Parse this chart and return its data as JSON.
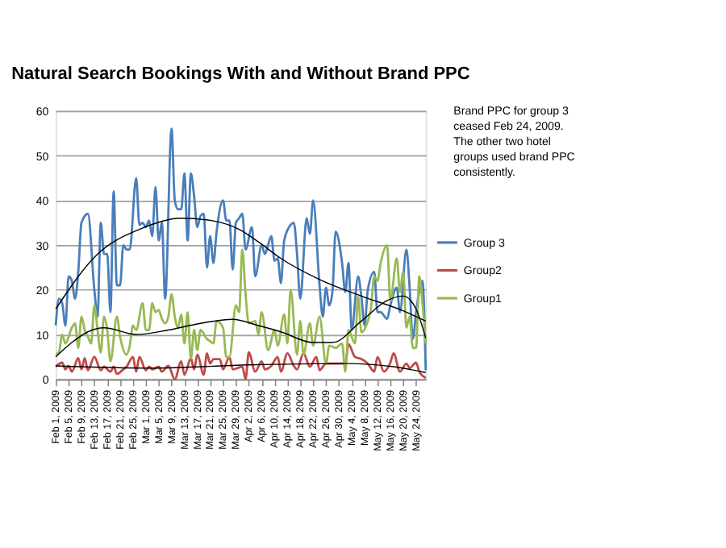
{
  "chart_data": {
    "type": "line",
    "title": "Natural Search Bookings With and Without Brand PPC",
    "annotations": [
      "Brand PPC  for group 3 ceased Feb 24, 2009.  The other two hotel groups used brand PPC consistently."
    ],
    "ylim": [
      0,
      60
    ],
    "yticks": [
      0,
      10,
      20,
      30,
      40,
      50,
      60
    ],
    "grid": "y",
    "legend": "right",
    "xlim": [
      "2009-02-01",
      "2009-05-27"
    ],
    "xticks": [
      {
        "value": "2009-02-01",
        "label": "Feb 1, 2009"
      },
      {
        "value": "2009-02-05",
        "label": "Feb 5, 2009"
      },
      {
        "value": "2009-02-09",
        "label": "Feb 9, 2009"
      },
      {
        "value": "2009-02-13",
        "label": "Feb 13, 2009"
      },
      {
        "value": "2009-02-17",
        "label": "Feb 17, 2009"
      },
      {
        "value": "2009-02-21",
        "label": "Feb 21, 2009"
      },
      {
        "value": "2009-02-25",
        "label": "Feb 25, 2009"
      },
      {
        "value": "2009-03-01",
        "label": "Mar 1, 2009"
      },
      {
        "value": "2009-03-05",
        "label": "Mar 5, 2009"
      },
      {
        "value": "2009-03-09",
        "label": "Mar 9, 2009"
      },
      {
        "value": "2009-03-13",
        "label": "Mar 13, 2009"
      },
      {
        "value": "2009-03-17",
        "label": "Mar 17, 2009"
      },
      {
        "value": "2009-03-21",
        "label": "Mar 21, 2009"
      },
      {
        "value": "2009-03-25",
        "label": "Mar 25, 2009"
      },
      {
        "value": "2009-03-29",
        "label": "Mar 29, 2009"
      },
      {
        "value": "2009-04-02",
        "label": "Apr 2, 2009"
      },
      {
        "value": "2009-04-06",
        "label": "Apr 6, 2009"
      },
      {
        "value": "2009-04-10",
        "label": "Apr 10, 2009"
      },
      {
        "value": "2009-04-14",
        "label": "Apr 14, 2009"
      },
      {
        "value": "2009-04-18",
        "label": "Apr 18, 2009"
      },
      {
        "value": "2009-04-22",
        "label": "Apr 22, 2009"
      },
      {
        "value": "2009-04-26",
        "label": "Apr 26, 2009"
      },
      {
        "value": "2009-04-30",
        "label": "Apr 30, 2009"
      },
      {
        "value": "2009-05-04",
        "label": "May 4, 2009"
      },
      {
        "value": "2009-05-08",
        "label": "May 8, 2009"
      },
      {
        "value": "2009-05-12",
        "label": "May 12, 2009"
      },
      {
        "value": "2009-05-16",
        "label": "May 16, 2009"
      },
      {
        "value": "2009-05-20",
        "label": "May 20, 2009"
      },
      {
        "value": "2009-05-24",
        "label": "May 24, 2009"
      }
    ],
    "series": [
      {
        "name": "Group 3",
        "color": "#4a7ebb",
        "x": [
          "2009-02-01",
          "2009-02-02",
          "2009-02-03",
          "2009-02-04",
          "2009-02-05",
          "2009-02-06",
          "2009-02-07",
          "2009-02-08",
          "2009-02-09",
          "2009-02-11",
          "2009-02-13",
          "2009-02-14",
          "2009-02-15",
          "2009-02-16",
          "2009-02-17",
          "2009-02-18",
          "2009-02-19",
          "2009-02-20",
          "2009-02-21",
          "2009-02-22",
          "2009-02-23",
          "2009-02-24",
          "2009-02-26",
          "2009-02-27",
          "2009-02-28",
          "2009-03-01",
          "2009-03-02",
          "2009-03-03",
          "2009-03-04",
          "2009-03-05",
          "2009-03-06",
          "2009-03-07",
          "2009-03-09",
          "2009-03-10",
          "2009-03-11",
          "2009-03-12",
          "2009-03-13",
          "2009-03-14",
          "2009-03-15",
          "2009-03-16",
          "2009-03-17",
          "2009-03-18",
          "2009-03-19",
          "2009-03-20",
          "2009-03-21",
          "2009-03-22",
          "2009-03-23",
          "2009-03-25",
          "2009-03-26",
          "2009-03-27",
          "2009-03-28",
          "2009-03-29",
          "2009-03-30",
          "2009-03-31",
          "2009-04-01",
          "2009-04-03",
          "2009-04-04",
          "2009-04-06",
          "2009-04-07",
          "2009-04-08",
          "2009-04-09",
          "2009-04-10",
          "2009-04-11",
          "2009-04-12",
          "2009-04-13",
          "2009-04-15",
          "2009-04-16",
          "2009-04-17",
          "2009-04-18",
          "2009-04-20",
          "2009-04-21",
          "2009-04-22",
          "2009-04-24",
          "2009-04-25",
          "2009-04-26",
          "2009-04-27",
          "2009-04-28",
          "2009-04-29",
          "2009-05-01",
          "2009-05-02",
          "2009-05-03",
          "2009-05-04",
          "2009-05-06",
          "2009-05-07",
          "2009-05-08",
          "2009-05-09",
          "2009-05-11",
          "2009-05-12",
          "2009-05-13",
          "2009-05-15",
          "2009-05-16",
          "2009-05-18",
          "2009-05-19",
          "2009-05-21",
          "2009-05-22",
          "2009-05-23",
          "2009-05-24",
          "2009-05-26",
          "2009-05-27"
        ],
        "values": [
          12,
          18,
          17,
          12,
          23,
          22,
          18,
          24,
          35,
          37,
          20,
          14,
          35,
          28,
          28,
          15,
          42,
          21,
          21,
          30,
          29,
          29,
          45,
          34.5,
          35,
          34,
          35.5,
          32,
          43,
          31,
          35,
          18,
          56,
          40,
          38,
          38,
          46,
          31,
          46,
          41,
          34,
          36.5,
          37,
          25,
          32,
          26,
          33,
          40,
          35.5,
          35.5,
          24.5,
          35,
          36,
          37,
          29,
          34,
          23,
          30,
          28,
          30,
          32,
          26.5,
          27,
          21.5,
          31,
          34.5,
          35,
          28,
          18,
          36,
          32.5,
          40,
          21,
          14,
          20.5,
          16.5,
          19.5,
          33,
          26,
          19.5,
          26,
          11,
          23,
          18.5,
          12,
          20,
          24,
          15,
          15,
          13.5,
          16.5,
          20.5,
          15,
          29,
          20.5,
          9,
          15,
          22,
          2
        ]
      },
      {
        "name": "Group2",
        "color": "#be4b48",
        "x": [
          "2009-02-01",
          "2009-02-03",
          "2009-02-04",
          "2009-02-05",
          "2009-02-06",
          "2009-02-08",
          "2009-02-09",
          "2009-02-10",
          "2009-02-11",
          "2009-02-13",
          "2009-02-15",
          "2009-02-16",
          "2009-02-18",
          "2009-02-19",
          "2009-02-20",
          "2009-02-22",
          "2009-02-23",
          "2009-02-25",
          "2009-02-26",
          "2009-02-27",
          "2009-03-01",
          "2009-03-02",
          "2009-03-03",
          "2009-03-05",
          "2009-03-06",
          "2009-03-08",
          "2009-03-10",
          "2009-03-12",
          "2009-03-13",
          "2009-03-15",
          "2009-03-16",
          "2009-03-17",
          "2009-03-19",
          "2009-03-20",
          "2009-03-21",
          "2009-03-22",
          "2009-03-24",
          "2009-03-25",
          "2009-03-27",
          "2009-03-28",
          "2009-03-31",
          "2009-04-01",
          "2009-04-02",
          "2009-04-04",
          "2009-04-06",
          "2009-04-07",
          "2009-04-09",
          "2009-04-11",
          "2009-04-12",
          "2009-04-14",
          "2009-04-16",
          "2009-04-17",
          "2009-04-19",
          "2009-04-21",
          "2009-04-23",
          "2009-04-24",
          "2009-04-26",
          "2009-04-28",
          "2009-05-01",
          "2009-05-02",
          "2009-05-03",
          "2009-05-05",
          "2009-05-07",
          "2009-05-09",
          "2009-05-11",
          "2009-05-12",
          "2009-05-14",
          "2009-05-16",
          "2009-05-17",
          "2009-05-19",
          "2009-05-21",
          "2009-05-22",
          "2009-05-24",
          "2009-05-25",
          "2009-05-27"
        ],
        "values": [
          2.8,
          3.7,
          2.2,
          3,
          1.7,
          4.7,
          2.2,
          4.7,
          2,
          5,
          2,
          2.8,
          1.7,
          2.8,
          1.2,
          2.2,
          2.8,
          5,
          1.7,
          5,
          2,
          2.8,
          2.2,
          2.8,
          1.7,
          3,
          0,
          4,
          1,
          4.7,
          2.2,
          5.5,
          1,
          5.8,
          3.5,
          4.5,
          4.5,
          2.2,
          5,
          2.2,
          2.8,
          0,
          6,
          1.7,
          4,
          2.2,
          3,
          5,
          1.7,
          5.8,
          3,
          2.2,
          5.8,
          2.8,
          5,
          2,
          3.5,
          3.5,
          3.5,
          3.5,
          7.8,
          5,
          4.5,
          3.5,
          1.7,
          5,
          1.7,
          3.7,
          5.8,
          1.7,
          3.5,
          2.5,
          3.7,
          1.7,
          0.3
        ]
      },
      {
        "name": "Group1",
        "color": "#98b954",
        "x": [
          "2009-02-01",
          "2009-02-02",
          "2009-02-03",
          "2009-02-04",
          "2009-02-06",
          "2009-02-07",
          "2009-02-08",
          "2009-02-09",
          "2009-02-10",
          "2009-02-11",
          "2009-02-12",
          "2009-02-13",
          "2009-02-14",
          "2009-02-15",
          "2009-02-16",
          "2009-02-17",
          "2009-02-18",
          "2009-02-20",
          "2009-02-21",
          "2009-02-23",
          "2009-02-24",
          "2009-02-25",
          "2009-02-26",
          "2009-02-28",
          "2009-03-01",
          "2009-03-02",
          "2009-03-03",
          "2009-03-04",
          "2009-03-05",
          "2009-03-06",
          "2009-03-07",
          "2009-03-08",
          "2009-03-09",
          "2009-03-10",
          "2009-03-11",
          "2009-03-12",
          "2009-03-13",
          "2009-03-14",
          "2009-03-15",
          "2009-03-16",
          "2009-03-17",
          "2009-03-18",
          "2009-03-20",
          "2009-03-21",
          "2009-03-22",
          "2009-03-23",
          "2009-03-25",
          "2009-03-26",
          "2009-03-27",
          "2009-03-29",
          "2009-03-30",
          "2009-03-31",
          "2009-04-01",
          "2009-04-02",
          "2009-04-04",
          "2009-04-05",
          "2009-04-06",
          "2009-04-08",
          "2009-04-10",
          "2009-04-11",
          "2009-04-13",
          "2009-04-14",
          "2009-04-15",
          "2009-04-17",
          "2009-04-18",
          "2009-04-19",
          "2009-04-21",
          "2009-04-22",
          "2009-04-24",
          "2009-04-26",
          "2009-04-27",
          "2009-04-29",
          "2009-05-01",
          "2009-05-02",
          "2009-05-03",
          "2009-05-05",
          "2009-05-06",
          "2009-05-07",
          "2009-05-09",
          "2009-05-10",
          "2009-05-11",
          "2009-05-12",
          "2009-05-13",
          "2009-05-15",
          "2009-05-16",
          "2009-05-18",
          "2009-05-19",
          "2009-05-20",
          "2009-05-21",
          "2009-05-22",
          "2009-05-23",
          "2009-05-24",
          "2009-05-25",
          "2009-05-26",
          "2009-05-27"
        ],
        "values": [
          5.6,
          6,
          10,
          8,
          11.5,
          12.5,
          7,
          14,
          11,
          9.5,
          8,
          16.5,
          11,
          6,
          14,
          11,
          4,
          14,
          9.5,
          5.5,
          7.5,
          12,
          11,
          17,
          11,
          11,
          17,
          15,
          15.5,
          13.5,
          12.5,
          14,
          19,
          14,
          11.5,
          14.5,
          8,
          15,
          4.5,
          11,
          6.5,
          11,
          9,
          8.5,
          8,
          13,
          11.5,
          5,
          5,
          16.5,
          15,
          29,
          19,
          12.5,
          13,
          10,
          15,
          6.5,
          11,
          7.5,
          14.5,
          8,
          20,
          5.5,
          13,
          5.5,
          12.5,
          7.5,
          14,
          3.5,
          7.5,
          7,
          8,
          1.7,
          11,
          8,
          18.5,
          10.5,
          13,
          16,
          23,
          22,
          26,
          30,
          17.5,
          27,
          19.5,
          24,
          11.5,
          14,
          7,
          7,
          23,
          17,
          8
        ]
      },
      {
        "color": "#000000",
        "x": [
          "2009-02-01",
          "2009-02-14",
          "2009-02-27",
          "2009-03-12",
          "2009-03-22",
          "2009-03-30",
          "2009-04-05",
          "2009-04-12",
          "2009-04-24",
          "2009-05-07",
          "2009-05-20",
          "2009-05-27"
        ],
        "values": [
          15.7,
          28,
          33.5,
          36,
          35.4,
          33.5,
          30.7,
          27,
          22.3,
          18.6,
          15.3,
          13
        ]
      },
      {
        "color": "#000000",
        "x": [
          "2009-02-01",
          "2009-03-03",
          "2009-04-02",
          "2009-05-02",
          "2009-05-17",
          "2009-05-27"
        ],
        "values": [
          3,
          2.5,
          3.2,
          3.5,
          2.8,
          1.5
        ]
      },
      {
        "color": "#000000",
        "x": [
          "2009-02-01",
          "2009-02-06",
          "2009-02-11",
          "2009-02-16",
          "2009-02-26",
          "2009-03-08",
          "2009-03-18",
          "2009-03-28",
          "2009-04-05",
          "2009-04-12",
          "2009-04-22",
          "2009-04-28",
          "2009-05-07",
          "2009-05-15",
          "2009-05-20",
          "2009-05-24",
          "2009-05-27"
        ],
        "values": [
          5,
          8.2,
          10.6,
          11.5,
          10,
          11,
          12.5,
          13.4,
          12,
          10.6,
          8.2,
          8.2,
          13,
          17.6,
          18.6,
          15.7,
          9.2
        ]
      }
    ]
  }
}
